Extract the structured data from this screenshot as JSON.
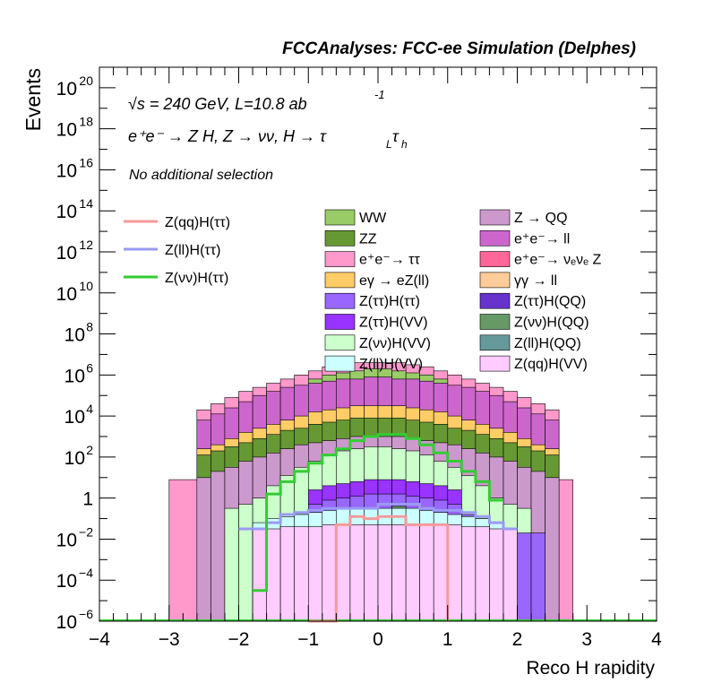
{
  "header": "FCCAnalyses: FCC-ee Simulation (Delphes)",
  "ylabel_text": "Events",
  "annotations": {
    "energy": "√s = 240 GeV, L=10.8 ab",
    "energy_sup": "-1",
    "process": "e⁺e⁻ → Z H, Z → νν, H → τ",
    "process_sub1": "L",
    "process_tau2": "τ",
    "process_sub2": "h",
    "selection": "No additional selection"
  },
  "legend_lines": [
    {
      "label": "Z(qq)H(ττ)",
      "color": "#f59a9a"
    },
    {
      "label": "Z(ll)H(ττ)",
      "color": "#9a9af5"
    },
    {
      "label": "Z(νν)H(ττ)",
      "color": "#33cc33"
    }
  ],
  "legend_fills": [
    {
      "label": "WW",
      "color": "#99cc66"
    },
    {
      "label": "Z → QQ",
      "color": "#cc99cc"
    },
    {
      "label": "ZZ",
      "color": "#669933"
    },
    {
      "label": "e⁺e⁻→ ll",
      "color": "#cc66cc"
    },
    {
      "label": "e⁺e⁻→ ττ",
      "color": "#ff99cc"
    },
    {
      "label": "e⁺e⁻→ νₑνₑ Z",
      "color": "#ff6699"
    },
    {
      "label": "eγ → eZ(ll)",
      "color": "#ffcc66"
    },
    {
      "label": "γγ → ll",
      "color": "#ffcc99"
    },
    {
      "label": "Z(ττ)H(ττ)",
      "color": "#9966ff"
    },
    {
      "label": "Z(ττ)H(QQ)",
      "color": "#6633cc"
    },
    {
      "label": "Z(ττ)H(VV)",
      "color": "#9933ff"
    },
    {
      "label": "Z(νν)H(QQ)",
      "color": "#669966"
    },
    {
      "label": "Z(νν)H(VV)",
      "color": "#ccffcc"
    },
    {
      "label": "Z(ll)H(QQ)",
      "color": "#669999"
    },
    {
      "label": "Z(ll)H(VV)",
      "color": "#ccffff"
    },
    {
      "label": "Z(qq)H(VV)",
      "color": "#ffccff"
    }
  ],
  "chart_data": {
    "type": "area",
    "title": "",
    "xlabel": "Reco H rapidity",
    "ylabel": "Events",
    "xlim": [
      -4,
      4
    ],
    "ylim_log10": [
      -6,
      21
    ],
    "log_y": true,
    "x_ticks": [
      "−4",
      "−3",
      "−2",
      "−1",
      "0",
      "1",
      "2",
      "3",
      "4"
    ],
    "y_ticks": [
      {
        "exp": -6,
        "base": "10",
        "sup": "−6"
      },
      {
        "exp": -4,
        "base": "10",
        "sup": "−4"
      },
      {
        "exp": -2,
        "base": "10",
        "sup": "−2"
      },
      {
        "exp": 0,
        "base": "1",
        "sup": ""
      },
      {
        "exp": 2,
        "base": "10",
        "sup": "2"
      },
      {
        "exp": 4,
        "base": "10",
        "sup": "4"
      },
      {
        "exp": 6,
        "base": "10",
        "sup": "6"
      },
      {
        "exp": 8,
        "base": "10",
        "sup": "8"
      },
      {
        "exp": 10,
        "base": "10",
        "sup": "10"
      },
      {
        "exp": 12,
        "base": "10",
        "sup": "12"
      },
      {
        "exp": 14,
        "base": "10",
        "sup": "14"
      },
      {
        "exp": 16,
        "base": "10",
        "sup": "16"
      },
      {
        "exp": 18,
        "base": "10",
        "sup": "18"
      },
      {
        "exp": 20,
        "base": "10",
        "sup": "20"
      }
    ],
    "bin_edges": [
      -3.0,
      -2.6,
      -2.4,
      -2.2,
      -2.0,
      -1.8,
      -1.6,
      -1.4,
      -1.2,
      -1.0,
      -0.8,
      -0.6,
      -0.4,
      -0.2,
      0.0,
      0.2,
      0.4,
      0.6,
      0.8,
      1.0,
      1.2,
      1.4,
      1.6,
      1.8,
      2.0,
      2.2,
      2.4,
      2.6,
      2.8
    ],
    "stack_log10_tops": [
      {
        "name": "Z(qq)H(VV)",
        "color": "#ffccff",
        "values": [
          -6,
          -6,
          -6,
          -6,
          -6,
          -1.5,
          -1.5,
          -1.4,
          -1.4,
          -1.4,
          -1.3,
          -1.3,
          -1.3,
          -1.3,
          -1.3,
          -1.3,
          -1.3,
          -1.3,
          -1.3,
          -1.3,
          -1.4,
          -1.4,
          -1.5,
          -1.5,
          -6,
          -6,
          -6,
          -6
        ]
      },
      {
        "name": "Z(ll)H(VV)",
        "color": "#ccffff",
        "values": [
          -6,
          -6,
          -6,
          -6,
          -6,
          -1.2,
          -1.0,
          -0.9,
          -0.8,
          -0.7,
          -0.6,
          -0.5,
          -0.5,
          -0.5,
          -0.5,
          -0.5,
          -0.5,
          -0.6,
          -0.7,
          -0.8,
          -0.9,
          -1.0,
          -1.2,
          -6,
          -6,
          -6,
          -6,
          -6
        ]
      },
      {
        "name": "Z(ll)H(QQ)",
        "color": "#669999",
        "values": [
          -6,
          -6,
          -6,
          -6,
          -6,
          -6,
          -1.2,
          -1.0,
          -6,
          -1.2,
          -6,
          -1.0,
          -6,
          -1.1,
          -6,
          -1.1,
          -6,
          -1.0,
          -6,
          -1.2,
          -6,
          -6,
          -6,
          -6,
          -6,
          -6,
          -6,
          -6
        ]
      },
      {
        "name": "Z(νν)H(QQ)",
        "color": "#669966",
        "values": [
          -6,
          -6,
          -6,
          -6,
          -6,
          -6,
          -6,
          -6,
          -6,
          -1.3,
          -6,
          -1.0,
          -0.6,
          -1.3,
          -1.3,
          -0.4,
          -1.0,
          -0.9,
          -6,
          -1.4,
          -6,
          -6,
          -6,
          -6,
          -6,
          -6,
          -6,
          -6
        ]
      },
      {
        "name": "Z(ττ)H(QQ)",
        "color": "#6633cc",
        "values": [
          -6,
          -6,
          -6,
          -6,
          -6,
          -6,
          -6,
          -6,
          -6,
          -6,
          -6,
          -6,
          -6,
          -6,
          -6,
          -5.0,
          -6,
          -6,
          -6,
          -6,
          -6,
          -6,
          -6,
          -6,
          -6,
          -6,
          -6,
          -6
        ]
      },
      {
        "name": "Z(ττ)H(ττ)",
        "color": "#9966ff",
        "values": [
          -6,
          -6,
          -6,
          -6,
          -6,
          -6,
          -1.2,
          -1.0,
          -0.8,
          -0.3,
          -0.1,
          0.0,
          0.1,
          0.2,
          0.2,
          0.2,
          0.1,
          0.0,
          -0.1,
          -0.3,
          -0.8,
          -1.0,
          -1.3,
          -1.7,
          -1.7,
          -1.7,
          -6,
          -6
        ]
      },
      {
        "name": "Z(ττ)H(VV)",
        "color": "#9933ff",
        "values": [
          -6,
          -6,
          -6,
          -6,
          -6,
          -6,
          -6,
          -6,
          -6,
          0.4,
          0.6,
          0.7,
          0.8,
          0.9,
          0.9,
          0.9,
          0.8,
          0.7,
          0.6,
          0.4,
          -6,
          -6,
          -6,
          -6,
          -6,
          -6,
          -6,
          -6
        ]
      },
      {
        "name": "Z(νν)H(VV)",
        "color": "#ccffcc",
        "values": [
          -6,
          -6,
          -6,
          -0.5,
          -0.3,
          0.0,
          0.6,
          1.1,
          1.5,
          1.8,
          2.1,
          2.3,
          2.4,
          2.5,
          2.5,
          2.4,
          2.3,
          2.1,
          1.8,
          1.5,
          1.1,
          0.6,
          0.0,
          -0.3,
          -0.5,
          -6,
          -6,
          -6
        ]
      },
      {
        "name": "Z → QQ",
        "color": "#cc99cc",
        "values": [
          -6,
          1.0,
          1.3,
          1.5,
          1.8,
          2.0,
          2.2,
          2.4,
          2.6,
          2.7,
          2.8,
          2.9,
          3.0,
          3.0,
          3.0,
          3.0,
          2.9,
          2.8,
          2.7,
          2.6,
          2.4,
          2.2,
          2.0,
          1.8,
          1.5,
          1.3,
          1.0,
          -6
        ]
      },
      {
        "name": "ZZ",
        "color": "#669933",
        "values": [
          -6,
          2.1,
          2.3,
          2.5,
          2.7,
          2.9,
          3.1,
          3.3,
          3.4,
          3.6,
          3.7,
          3.8,
          3.9,
          3.9,
          3.9,
          3.9,
          3.8,
          3.7,
          3.6,
          3.4,
          3.3,
          3.1,
          2.9,
          2.7,
          2.5,
          2.3,
          2.1,
          -6
        ]
      },
      {
        "name": "e⁺e⁻→ νₑνₑ Z",
        "color": "#ff6699",
        "values": [
          -6,
          -6,
          -6,
          -6,
          -6,
          2.6,
          2.8,
          2.9,
          3.0,
          3.1,
          3.2,
          3.2,
          3.3,
          3.3,
          3.3,
          3.3,
          3.2,
          3.2,
          3.1,
          3.0,
          2.9,
          2.8,
          2.6,
          -6,
          -6,
          -6,
          -6,
          -6
        ]
      },
      {
        "name": "eγ → eZ(ll)",
        "color": "#ffcc66",
        "values": [
          -6,
          2.4,
          2.6,
          2.9,
          3.2,
          3.4,
          3.6,
          3.8,
          4.0,
          4.2,
          4.3,
          4.4,
          4.5,
          4.5,
          4.5,
          4.5,
          4.4,
          4.3,
          4.2,
          4.0,
          3.8,
          3.6,
          3.4,
          3.2,
          2.9,
          2.6,
          2.4,
          -6
        ]
      },
      {
        "name": "e⁺e⁻→ ll",
        "color": "#cc66cc",
        "values": [
          -6,
          3.8,
          4.1,
          4.4,
          4.7,
          5.0,
          5.2,
          5.4,
          5.5,
          5.6,
          5.7,
          5.8,
          5.8,
          5.9,
          5.9,
          5.8,
          5.8,
          5.7,
          5.6,
          5.5,
          5.4,
          5.2,
          5.0,
          4.7,
          4.4,
          4.1,
          3.8,
          -6
        ]
      },
      {
        "name": "WW",
        "color": "#99cc66",
        "values": [
          -6,
          -6,
          -6,
          -6,
          -6,
          -6,
          -6,
          -6,
          -6,
          5.8,
          6.0,
          6.1,
          6.2,
          6.3,
          6.3,
          6.2,
          6.1,
          6.0,
          5.8,
          -6,
          -6,
          -6,
          -6,
          -6,
          -6,
          -6,
          -6,
          -6
        ]
      },
      {
        "name": "e⁺e⁻→ ττ",
        "color": "#ff99cc",
        "values": [
          0.9,
          4.3,
          4.6,
          4.9,
          5.2,
          5.4,
          5.6,
          5.8,
          6.0,
          6.2,
          6.4,
          6.5,
          6.6,
          6.6,
          6.6,
          6.6,
          6.5,
          6.4,
          6.2,
          6.0,
          5.8,
          5.6,
          5.4,
          5.2,
          4.9,
          4.6,
          4.3,
          0.9
        ]
      }
    ],
    "lines": [
      {
        "name": "Z(qq)H(ττ)",
        "color": "#f59a9a",
        "edges": [
          -1.0,
          -0.6,
          -0.4,
          -0.2,
          0.0,
          0.2,
          0.4,
          0.8,
          1.0
        ],
        "log10": [
          -6,
          -1.3,
          -0.9,
          -1.0,
          -0.9,
          -0.9,
          -1.3,
          -1.3,
          -6
        ]
      },
      {
        "name": "Z(ll)H(ττ)",
        "color": "#9a9af5",
        "edges": [
          -2.0,
          -1.8,
          -1.6,
          -1.4,
          -1.2,
          -1.0,
          -0.8,
          0.0,
          0.6,
          0.8,
          1.2,
          1.4,
          1.6,
          1.8,
          2.0
        ],
        "log10": [
          -1.5,
          -1.5,
          -1.2,
          -0.8,
          -0.7,
          -0.6,
          -0.5,
          -0.3,
          -0.5,
          -0.6,
          -0.7,
          -0.9,
          -1.2,
          -1.5
        ]
      },
      {
        "name": "Z(νν)H(ττ)",
        "color": "#33cc33",
        "edges": [
          -1.8,
          -1.6,
          -1.4,
          -1.2,
          -1.0,
          -0.8,
          -0.6,
          -0.4,
          -0.2,
          0.0,
          0.2,
          0.4,
          0.6,
          0.8,
          1.0,
          1.2,
          1.4,
          1.6,
          1.8
        ],
        "log10": [
          -4.5,
          0.2,
          0.8,
          1.3,
          1.7,
          2.1,
          2.4,
          2.8,
          3.0,
          3.1,
          3.1,
          2.9,
          2.6,
          2.2,
          1.8,
          1.3,
          0.8,
          -0.1
        ]
      }
    ]
  }
}
